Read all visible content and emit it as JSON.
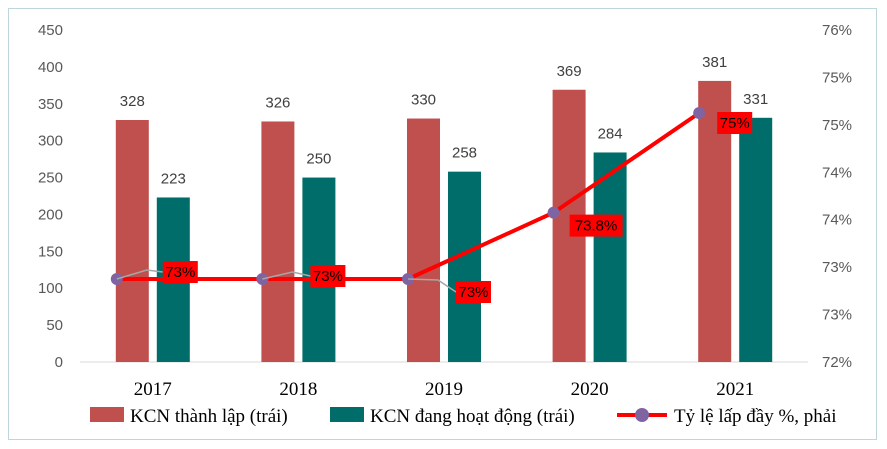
{
  "chart_data": {
    "type": "bar",
    "categories": [
      "2017",
      "2018",
      "2019",
      "2020",
      "2021"
    ],
    "series": [
      {
        "name": "KCN thành lập (trái)",
        "type": "bar",
        "axis": "left",
        "values": [
          328,
          326,
          330,
          369,
          381
        ],
        "color": "#c0504d"
      },
      {
        "name": "KCN đang hoạt động (trái)",
        "type": "bar",
        "axis": "left",
        "values": [
          223,
          250,
          258,
          284,
          331
        ],
        "color": "#006d6a"
      },
      {
        "name": "Tỷ lệ lấp đầy %, phải",
        "type": "line",
        "axis": "right",
        "values": [
          73.0,
          73.0,
          73.0,
          73.8,
          75.0
        ],
        "labels": [
          "73%",
          "73%",
          "73%",
          "73.8%",
          "75%"
        ],
        "color": "#ff0000",
        "marker_color": "#8064a2"
      }
    ],
    "y_left": {
      "ylim": [
        0,
        450
      ],
      "ticks": [
        "0",
        "50",
        "100",
        "150",
        "200",
        "250",
        "300",
        "350",
        "400",
        "450"
      ]
    },
    "y_right": {
      "ylim": [
        72.0,
        76.0
      ],
      "ticks": [
        "72%",
        "73%",
        "73%",
        "74%",
        "74%",
        "75%",
        "75%",
        "76%"
      ]
    },
    "grid": false,
    "legend_position": "bottom",
    "data_label_bg": "#ff0000"
  }
}
